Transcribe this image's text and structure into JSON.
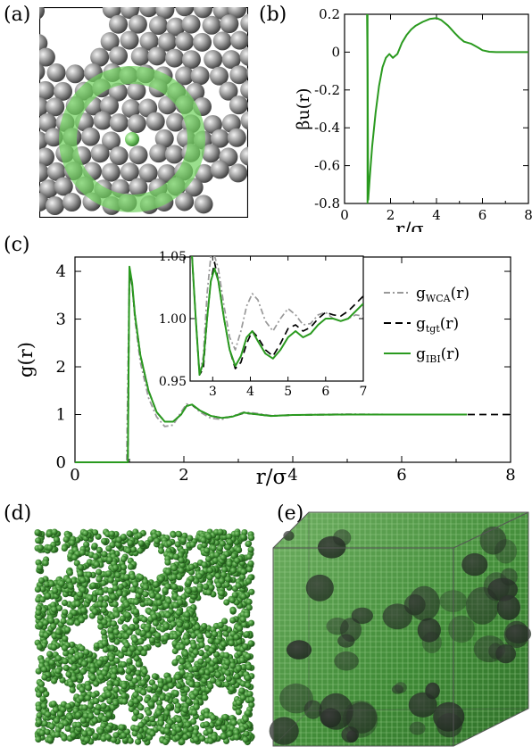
{
  "panels": {
    "a": "(a)",
    "b": "(b)",
    "c": "(c)",
    "d": "(d)",
    "e": "(e)"
  },
  "colors": {
    "green": "#2a9a1f",
    "ring": "#8fdc80",
    "grey": "#999999",
    "black": "#000000",
    "sphere_green": "#2f6e2a"
  },
  "chart_data": [
    {
      "id": "b",
      "type": "line",
      "ylabel": "βu(r)",
      "xlabel": "r/σ",
      "xlim": [
        0,
        8
      ],
      "ylim": [
        -0.8,
        0.2
      ],
      "xticks": [
        "0",
        "2",
        "4",
        "6",
        "8"
      ],
      "yticks": [
        "0.2",
        "0",
        "-0.2",
        "-0.4",
        "-0.6",
        "-0.8"
      ],
      "series": [
        {
          "color": "#2a9a1f",
          "x": [
            0.98,
            1.0,
            1.03,
            1.1,
            1.2,
            1.35,
            1.5,
            1.65,
            1.8,
            1.95,
            2.1,
            2.3,
            2.5,
            2.7,
            2.9,
            3.1,
            3.4,
            3.7,
            4.0,
            4.2,
            4.5,
            4.8,
            5.0,
            5.2,
            5.5,
            5.8,
            6.0,
            6.3,
            6.6,
            7.0,
            7.5,
            8.0
          ],
          "y": [
            0.2,
            -0.1,
            -0.78,
            -0.66,
            -0.5,
            -0.32,
            -0.18,
            -0.08,
            -0.03,
            -0.01,
            -0.03,
            -0.01,
            0.05,
            0.09,
            0.12,
            0.14,
            0.16,
            0.175,
            0.18,
            0.17,
            0.14,
            0.1,
            0.075,
            0.055,
            0.045,
            0.025,
            0.01,
            0.002,
            0.0,
            0.0,
            0.0,
            0.0
          ]
        }
      ]
    },
    {
      "id": "c",
      "type": "line",
      "ylabel": "g(r)",
      "xlabel": "r/σ",
      "xlim": [
        0,
        8
      ],
      "ylim": [
        0,
        4.3
      ],
      "xticks": [
        "0",
        "2",
        "4",
        "6",
        "8"
      ],
      "yticks": [
        "0",
        "1",
        "2",
        "3",
        "4"
      ],
      "legend": [
        "g",
        "WCA",
        "(r)",
        "g",
        "tgt",
        "(r)",
        "g",
        "IBI",
        "(r)"
      ],
      "series": [
        {
          "name": "gWCA(r)",
          "color": "#999999",
          "dash": "7,3,2,3",
          "x": [
            0,
            0.95,
            1.0,
            1.05,
            1.1,
            1.2,
            1.35,
            1.5,
            1.65,
            1.8,
            1.95,
            2.05,
            2.15,
            2.3,
            2.5,
            2.7,
            2.9,
            3.1,
            3.3,
            3.6,
            4.0,
            5.0,
            6.0,
            7.0
          ],
          "y": [
            0,
            0,
            4.0,
            3.7,
            3.0,
            2.1,
            1.35,
            0.95,
            0.75,
            0.78,
            1.05,
            1.22,
            1.2,
            1.05,
            0.92,
            0.9,
            0.97,
            1.05,
            1.03,
            0.98,
            0.99,
            1.01,
            1.0,
            1.0
          ]
        },
        {
          "name": "gtgt(r)",
          "color": "#000000",
          "dash": "8,5",
          "x": [
            0,
            0.97,
            1.0,
            1.05,
            1.1,
            1.2,
            1.35,
            1.5,
            1.65,
            1.8,
            1.95,
            2.05,
            2.15,
            2.3,
            2.5,
            2.7,
            2.9,
            3.1,
            3.3,
            3.6,
            4.0,
            5.0,
            6.0,
            7.0,
            8.0
          ],
          "y": [
            0,
            0,
            4.05,
            3.7,
            3.1,
            2.25,
            1.5,
            1.05,
            0.85,
            0.85,
            1.0,
            1.18,
            1.2,
            1.08,
            0.97,
            0.93,
            0.96,
            1.03,
            1.01,
            0.97,
            0.99,
            1.0,
            1.0,
            1.0,
            1.0
          ]
        },
        {
          "name": "gIBI(r)",
          "color": "#2a9a1f",
          "dash": "",
          "x": [
            0,
            0.97,
            1.0,
            1.05,
            1.1,
            1.2,
            1.35,
            1.5,
            1.65,
            1.8,
            1.95,
            2.05,
            2.15,
            2.3,
            2.5,
            2.7,
            2.9,
            3.1,
            3.3,
            3.6,
            4.0,
            5.0,
            6.0,
            7.2
          ],
          "y": [
            0,
            0,
            4.1,
            3.75,
            3.1,
            2.25,
            1.5,
            1.05,
            0.85,
            0.85,
            1.0,
            1.18,
            1.21,
            1.08,
            0.97,
            0.93,
            0.96,
            1.04,
            1.01,
            0.97,
            0.99,
            1.0,
            1.0,
            1.0
          ]
        }
      ]
    },
    {
      "id": "c-inset",
      "type": "line",
      "xlim": [
        2.4,
        7
      ],
      "ylim": [
        0.95,
        1.05
      ],
      "xticks": [
        "3",
        "4",
        "5",
        "6",
        "7"
      ],
      "yticks": [
        "1.05",
        "1.00",
        "0.95"
      ],
      "series": [
        {
          "name": "gWCA(r)",
          "color": "#999999",
          "dash": "7,3,2,3",
          "x": [
            2.45,
            2.55,
            2.65,
            2.75,
            2.85,
            2.95,
            3.05,
            3.15,
            3.3,
            3.45,
            3.6,
            3.75,
            3.9,
            4.05,
            4.2,
            4.4,
            4.6,
            4.8,
            5.0,
            5.2,
            5.4,
            5.6,
            5.8,
            6.0,
            6.2,
            6.4,
            6.6,
            6.8,
            7.0
          ],
          "y": [
            1.05,
            1.0,
            0.955,
            0.97,
            1.02,
            1.05,
            1.05,
            1.04,
            1.01,
            0.985,
            0.975,
            0.99,
            1.01,
            1.02,
            1.015,
            0.998,
            0.99,
            1.0,
            1.008,
            1.003,
            0.995,
            0.996,
            1.003,
            1.005,
            1.0,
            0.998,
            1.0,
            1.003,
            1.002
          ]
        },
        {
          "name": "gtgt(r)",
          "color": "#000000",
          "dash": "8,5",
          "x": [
            2.45,
            2.55,
            2.65,
            2.75,
            2.85,
            2.95,
            3.05,
            3.15,
            3.3,
            3.45,
            3.6,
            3.75,
            3.9,
            4.05,
            4.2,
            4.4,
            4.6,
            4.8,
            5.0,
            5.2,
            5.4,
            5.6,
            5.8,
            6.0,
            6.2,
            6.4,
            6.6,
            6.8,
            7.0
          ],
          "y": [
            1.05,
            1.0,
            0.955,
            0.96,
            1.0,
            1.03,
            1.045,
            1.03,
            1.0,
            0.975,
            0.96,
            0.965,
            0.98,
            0.99,
            0.985,
            0.975,
            0.97,
            0.98,
            0.992,
            0.995,
            0.99,
            0.993,
            1.0,
            1.005,
            1.003,
            1.002,
            1.006,
            1.012,
            1.018
          ]
        },
        {
          "name": "gIBI(r)",
          "color": "#2a9a1f",
          "dash": "",
          "x": [
            2.45,
            2.55,
            2.65,
            2.75,
            2.85,
            2.95,
            3.05,
            3.15,
            3.3,
            3.45,
            3.6,
            3.75,
            3.9,
            4.05,
            4.2,
            4.4,
            4.6,
            4.8,
            5.0,
            5.2,
            5.4,
            5.6,
            5.8,
            6.0,
            6.2,
            6.4,
            6.6,
            6.8,
            7.0
          ],
          "y": [
            1.05,
            1.0,
            0.955,
            0.965,
            1.0,
            1.03,
            1.04,
            1.03,
            1.0,
            0.975,
            0.962,
            0.97,
            0.985,
            0.99,
            0.982,
            0.972,
            0.968,
            0.975,
            0.985,
            0.99,
            0.985,
            0.988,
            0.995,
            1.0,
            1.0,
            0.998,
            1.0,
            1.006,
            1.012
          ]
        }
      ]
    }
  ]
}
